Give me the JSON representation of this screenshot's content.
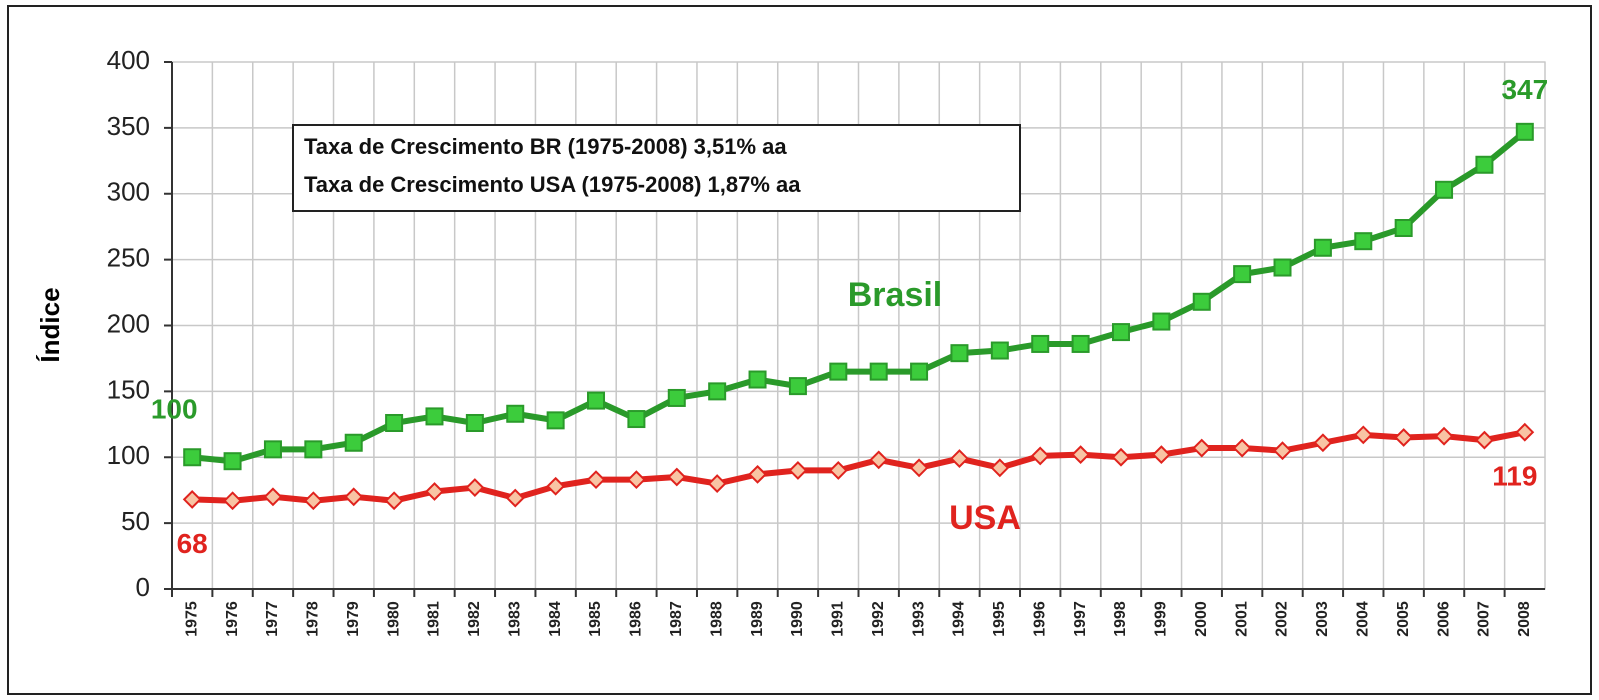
{
  "chart_data": {
    "type": "line",
    "y_label": "Índice",
    "annotations": [
      "Taxa de Crescimento BR (1975-2008) 3,51% aa",
      "Taxa de Crescimento USA (1975-2008) 1,87% aa"
    ],
    "categories": [
      "1975",
      "1976",
      "1977",
      "1978",
      "1979",
      "1980",
      "1981",
      "1982",
      "1983",
      "1984",
      "1985",
      "1986",
      "1987",
      "1988",
      "1989",
      "1990",
      "1991",
      "1992",
      "1993",
      "1994",
      "1995",
      "1996",
      "1997",
      "1998",
      "1999",
      "2000",
      "2001",
      "2002",
      "2003",
      "2004",
      "2005",
      "2006",
      "2007",
      "2008"
    ],
    "series": [
      {
        "name": "Brasil",
        "color": "#2a9a2a",
        "marker_fill": "#3ccc3c",
        "values": [
          100,
          97,
          106,
          106,
          111,
          126,
          131,
          126,
          133,
          128,
          143,
          129,
          145,
          150,
          159,
          154,
          165,
          165,
          165,
          179,
          181,
          186,
          186,
          195,
          203,
          218,
          239,
          244,
          259,
          264,
          274,
          303,
          322,
          347
        ]
      },
      {
        "name": "USA",
        "color": "#e0231e",
        "marker_fill": "#f8c4a4",
        "values": [
          68,
          67,
          70,
          67,
          70,
          67,
          74,
          77,
          69,
          78,
          83,
          83,
          85,
          80,
          87,
          90,
          90,
          98,
          92,
          99,
          92,
          101,
          102,
          100,
          102,
          107,
          107,
          105,
          111,
          117,
          115,
          116,
          113,
          119
        ]
      }
    ],
    "ylim": [
      0,
      400
    ],
    "yticks": [
      0,
      50,
      100,
      150,
      200,
      250,
      300,
      350,
      400
    ],
    "grid": true
  }
}
